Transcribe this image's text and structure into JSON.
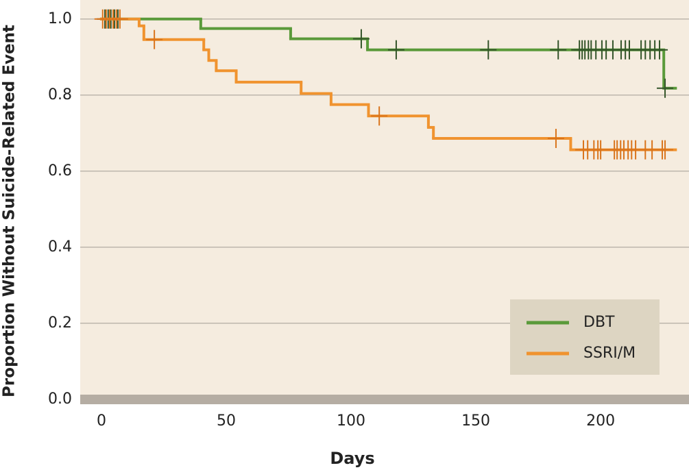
{
  "chart_data": {
    "type": "km-step",
    "xlabel": "Days",
    "ylabel": "Proportion Without Suicide-Related Event",
    "xlim": [
      -8.5,
      235.4
    ],
    "ylim": [
      -0.013,
      1.05
    ],
    "xticks": [
      0,
      50,
      100,
      150,
      200
    ],
    "yticks": [
      {
        "value": 0,
        "label": "0.0"
      },
      0.2,
      0.4,
      0.6,
      0.8,
      {
        "value": 1,
        "label": "1.0"
      }
    ],
    "grid": true,
    "legend": "lower right",
    "series": [
      {
        "name": "DBT",
        "color": "#5a9a3a",
        "censor_color": "#34552a",
        "x": [
          0,
          39.8,
          75.8,
          106.6,
          225.3,
          230
        ],
        "y": [
          1.0,
          0.975,
          0.948,
          0.919,
          0.818,
          0.818
        ],
        "censored": {
          "x": [
            1.4,
            2.7,
            3.8,
            5.2,
            6.6,
            104.1,
            118.1,
            155,
            183,
            191.5,
            192.6,
            193.7,
            195.1,
            196.2,
            198.1,
            200.5,
            202.2,
            204.9,
            208.2,
            209.9,
            211.5,
            216.2,
            217.9,
            219.8,
            221.7,
            223.6,
            225.8
          ],
          "y": [
            1.0,
            1.0,
            1.0,
            1.0,
            1.0,
            0.948,
            0.919,
            0.919,
            0.919,
            0.919,
            0.919,
            0.919,
            0.919,
            0.919,
            0.919,
            0.919,
            0.919,
            0.919,
            0.919,
            0.919,
            0.919,
            0.919,
            0.919,
            0.919,
            0.919,
            0.919,
            0.818
          ]
        }
      },
      {
        "name": "SSRI/M",
        "color": "#f0932f",
        "censor_color": "#d9741c",
        "x": [
          0,
          15.1,
          17,
          41,
          43,
          46,
          54,
          80,
          92,
          107,
          131,
          133,
          188,
          230
        ],
        "y": [
          1.0,
          0.982,
          0.946,
          0.919,
          0.891,
          0.864,
          0.834,
          0.804,
          0.775,
          0.745,
          0.715,
          0.686,
          0.656,
          0.656
        ],
        "censored": {
          "x": [
            0.5,
            1.9,
            3.3,
            4.7,
            6,
            7.4,
            21.2,
            111.3,
            182.1,
            193.1,
            194.8,
            197.3,
            198.9,
            200,
            205.5,
            206.6,
            208,
            209.3,
            211,
            212.4,
            214,
            217.9,
            220.6,
            224.7,
            225.8
          ],
          "y": [
            1.0,
            1.0,
            1.0,
            1.0,
            1.0,
            1.0,
            0.946,
            0.745,
            0.686,
            0.656,
            0.656,
            0.656,
            0.656,
            0.656,
            0.656,
            0.656,
            0.656,
            0.656,
            0.656,
            0.656,
            0.656,
            0.656,
            0.656,
            0.656,
            0.656
          ]
        }
      }
    ]
  }
}
